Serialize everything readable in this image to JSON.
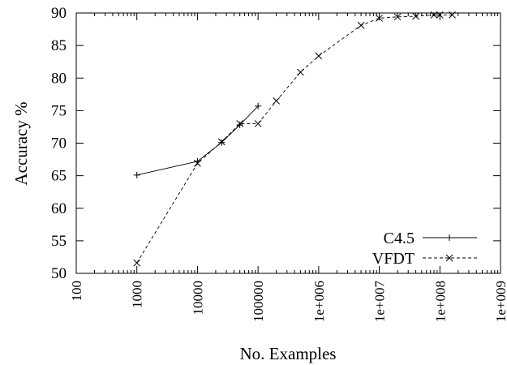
{
  "chart_data": {
    "type": "line",
    "xlabel": "No. Examples",
    "ylabel": "Accuracy %",
    "x_scale": "log",
    "xlim": [
      100,
      1000000000
    ],
    "ylim": [
      50,
      90
    ],
    "x_ticks": [
      100,
      1000,
      10000,
      100000,
      1000000,
      10000000,
      100000000,
      1000000000
    ],
    "x_tick_labels": [
      "100",
      "1000",
      "10000",
      "100000",
      "1e+006",
      "1e+007",
      "1e+008",
      "1e+009"
    ],
    "y_ticks": [
      50,
      55,
      60,
      65,
      70,
      75,
      80,
      85,
      90
    ],
    "y_tick_labels": [
      "50",
      "55",
      "60",
      "65",
      "70",
      "75",
      "80",
      "85",
      "90"
    ],
    "grid": false,
    "legend_position": "bottom-right",
    "series": [
      {
        "name": "C4.5",
        "color": "#000000",
        "marker": "plus",
        "line_style": "solid",
        "points": [
          [
            1000,
            65.1
          ],
          [
            10000,
            67.2
          ],
          [
            25000,
            70.1
          ],
          [
            50000,
            72.8
          ],
          [
            100000,
            75.7
          ]
        ]
      },
      {
        "name": "VFDT",
        "color": "#000000",
        "marker": "cross",
        "line_style": "dashed",
        "points": [
          [
            1000,
            51.6
          ],
          [
            10000,
            66.9
          ],
          [
            25000,
            70.2
          ],
          [
            50000,
            73.0
          ],
          [
            100000,
            73.0
          ],
          [
            200000,
            76.5
          ],
          [
            500000,
            80.9
          ],
          [
            1000000,
            83.4
          ],
          [
            5000000,
            88.1
          ],
          [
            10000000,
            89.2
          ],
          [
            20000000,
            89.4
          ],
          [
            40000000,
            89.5
          ],
          [
            80000000,
            89.7
          ],
          [
            100000000,
            89.7
          ],
          [
            160000000,
            89.7
          ]
        ]
      }
    ]
  }
}
